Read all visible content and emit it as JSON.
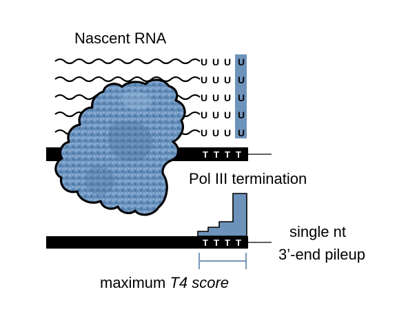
{
  "labels": {
    "nascent_rna": "Nascent RNA",
    "pol3_termination": "Pol III termination",
    "single_nt_line1": "single nt",
    "single_nt_line2": "3’-end pileup",
    "max_score_prefix": "maximum ",
    "max_score_italic": "T4 score"
  },
  "rna_strands": [
    {
      "u": [
        "U",
        "U",
        "U",
        "U"
      ]
    },
    {
      "u": [
        "U",
        "U",
        "U",
        "U"
      ]
    },
    {
      "u": [
        "U",
        "U",
        "U",
        "U"
      ]
    },
    {
      "u": [
        "U",
        "U",
        "U",
        "U"
      ]
    },
    {
      "u": [
        "U",
        "U",
        "U",
        "U"
      ]
    }
  ],
  "dna_top_t": [
    "T",
    "T",
    "T",
    "T"
  ],
  "dna_bottom_t": [
    "T",
    "T",
    "T",
    "T"
  ],
  "colors": {
    "polymerase": "#6b93bf",
    "polymerase_outline": "#000000",
    "highlight": "#6e93bb",
    "pileup": "#6e93bb",
    "bracket": "#7d9bb8",
    "dna": "#000000"
  }
}
